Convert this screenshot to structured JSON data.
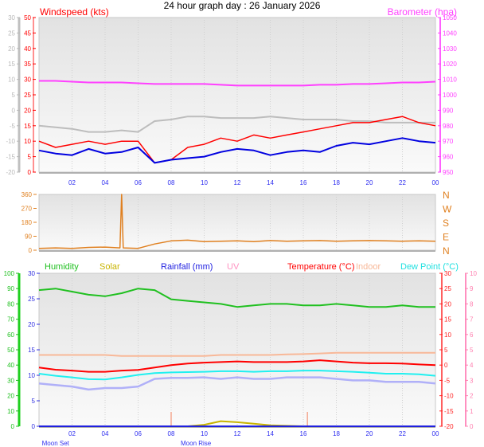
{
  "title": "24 hour graph day : 26 January 2026",
  "colors": {
    "wind_gust": "#ff0000",
    "wind_avg": "#0000e0",
    "baro": "#ff40ff",
    "grey": "#bdbdbd",
    "dir": "#e08020",
    "humidity": "#20c020",
    "solar": "#c8b400",
    "rain": "#2020e0",
    "uv": "#ff90c0",
    "temp": "#ff0000",
    "indoor": "#f8b898",
    "dew": "#20f0f0",
    "lilac": "#b0b0f8",
    "markers": "#f4a890"
  },
  "time_ticks": [
    "02",
    "04",
    "06",
    "08",
    "10",
    "12",
    "14",
    "16",
    "18",
    "20",
    "22",
    "00"
  ],
  "chart_data": [
    {
      "type": "line",
      "labels": {
        "wind": "Windspeed (kts)",
        "baro": "Barometer (hpa)"
      },
      "x": [
        0,
        1,
        2,
        3,
        4,
        5,
        6,
        7,
        8,
        9,
        10,
        11,
        12,
        13,
        14,
        15,
        16,
        17,
        18,
        19,
        20,
        21,
        22,
        23,
        24
      ],
      "axes": {
        "left_grey": {
          "range": [
            -20,
            30
          ],
          "ticks": [
            "30",
            "25",
            "20",
            "15",
            "10",
            "5",
            "0",
            "-5",
            "-10",
            "-15",
            "-20"
          ]
        },
        "left_wind": {
          "range": [
            0,
            50
          ],
          "ticks": [
            "50",
            "45",
            "40",
            "35",
            "30",
            "25",
            "20",
            "15",
            "10",
            "5",
            "0"
          ]
        },
        "right_baro": {
          "range": [
            950,
            1050
          ],
          "ticks": [
            "1050",
            "1040",
            "1030",
            "1020",
            "1010",
            "1000",
            "990",
            "980",
            "970",
            "960",
            "950"
          ]
        }
      },
      "series": [
        {
          "key": "baro",
          "axis": "right_baro",
          "values": [
            1009,
            1009,
            1008.5,
            1008,
            1008,
            1008,
            1007.5,
            1007,
            1007,
            1007,
            1007,
            1006.5,
            1006,
            1006,
            1006,
            1006,
            1006,
            1006.5,
            1006.5,
            1007,
            1007,
            1007.5,
            1008,
            1008,
            1008.5
          ]
        },
        {
          "key": "grey",
          "axis": "left_grey",
          "values": [
            -5,
            -5.5,
            -6,
            -7,
            -7,
            -6.5,
            -7,
            -3.5,
            -3,
            -2,
            -2,
            -2.5,
            -2.5,
            -2.5,
            -2,
            -2.5,
            -3,
            -3,
            -3,
            -3.5,
            -3.5,
            -4,
            -4,
            -4,
            -4
          ]
        },
        {
          "key": "wind_gust",
          "axis": "left_wind",
          "values": [
            10,
            8,
            9,
            10,
            9,
            10,
            10,
            3,
            4,
            8,
            9,
            11,
            10,
            12,
            11,
            12,
            13,
            14,
            15,
            16,
            16,
            17,
            18,
            16,
            15
          ]
        },
        {
          "key": "wind_avg",
          "axis": "left_wind",
          "values": [
            7,
            6,
            5.5,
            7.5,
            6,
            6.5,
            8,
            3,
            4,
            4.5,
            5,
            6.5,
            7.5,
            7,
            5.5,
            6.5,
            7,
            6.5,
            8.5,
            9.5,
            9,
            10,
            11,
            10,
            9.5
          ]
        }
      ]
    },
    {
      "type": "line",
      "x": [
        0,
        1,
        2,
        3,
        4,
        4.9,
        5,
        5.1,
        6,
        7,
        8,
        9,
        10,
        11,
        12,
        13,
        14,
        15,
        16,
        17,
        18,
        19,
        20,
        21,
        22,
        23,
        24
      ],
      "axis": {
        "range": [
          0,
          360
        ],
        "ticks": [
          "360",
          "270",
          "180",
          "90",
          "0"
        ],
        "compass": [
          "N",
          "W",
          "S",
          "E",
          "N"
        ]
      },
      "series": [
        {
          "key": "dir",
          "values": [
            12,
            15,
            12,
            18,
            20,
            15,
            360,
            15,
            12,
            40,
            60,
            65,
            55,
            58,
            60,
            55,
            62,
            58,
            60,
            62,
            58,
            60,
            62,
            60,
            58,
            60,
            58
          ]
        }
      ]
    },
    {
      "type": "line",
      "labels": {
        "humidity": "Humidity",
        "solar": "Solar",
        "rain": "Rainfall (mm)",
        "uv": "UV",
        "temp": "Temperature (°C)",
        "indoor": "Indoor",
        "dew": "Dew Point (°C)"
      },
      "x": [
        0,
        1,
        2,
        3,
        4,
        5,
        6,
        7,
        8,
        9,
        10,
        11,
        12,
        13,
        14,
        15,
        16,
        17,
        18,
        19,
        20,
        21,
        22,
        23,
        24
      ],
      "axes": {
        "humidity": {
          "range": [
            0,
            100
          ],
          "ticks": [
            "100",
            "90",
            "80",
            "70",
            "60",
            "50",
            "40",
            "30",
            "20",
            "10",
            "0"
          ]
        },
        "rain": {
          "range": [
            0,
            30
          ],
          "ticks": [
            "30",
            "25",
            "20",
            "15",
            "10",
            "5",
            "0"
          ]
        },
        "temp": {
          "range": [
            -20,
            30
          ],
          "ticks": [
            "30",
            "25",
            "20",
            "15",
            "10",
            "5",
            "0",
            "-5",
            "-10",
            "-15",
            "-20"
          ]
        },
        "uv": {
          "range": [
            0,
            10
          ],
          "ticks": [
            "10",
            "9",
            "8",
            "7",
            "6",
            "5",
            "4",
            "3",
            "2",
            "1",
            "0"
          ]
        }
      },
      "moon": {
        "set_label": "Moon Set",
        "rise_label": "Moon Rise",
        "set_time": 1,
        "rise_time": 9.5
      },
      "markers_time": [
        8,
        16.25
      ],
      "series": [
        {
          "key": "humidity",
          "axis": "humidity",
          "values": [
            89,
            90,
            88,
            86,
            85,
            87,
            90,
            89,
            83,
            82,
            81,
            80,
            78,
            79,
            80,
            80,
            79,
            79,
            80,
            79,
            78,
            78,
            79,
            78,
            78
          ]
        },
        {
          "key": "indoor",
          "axis": "temp",
          "values": [
            3.3,
            3.3,
            3.3,
            3.3,
            3.3,
            3,
            3,
            3,
            3,
            3,
            3,
            3.3,
            3.3,
            3.3,
            3.3,
            3.5,
            3.6,
            3.8,
            4,
            4,
            4,
            4,
            4,
            4,
            4
          ]
        },
        {
          "key": "temp",
          "axis": "temp",
          "values": [
            -0.8,
            -1.5,
            -1.8,
            -2.2,
            -2.2,
            -1.8,
            -1.6,
            -0.8,
            0,
            0.5,
            0.8,
            1,
            1.2,
            1,
            1,
            1,
            1.2,
            1.6,
            1.2,
            0.8,
            0.6,
            0.6,
            0.5,
            0.2,
            0
          ]
        },
        {
          "key": "dew",
          "axis": "temp",
          "values": [
            -2.8,
            -3.5,
            -4,
            -4.6,
            -4.7,
            -4,
            -3.2,
            -2.6,
            -2.4,
            -2.3,
            -2.2,
            -2,
            -2,
            -2.2,
            -2,
            -2,
            -1.8,
            -1.8,
            -2,
            -2.2,
            -2.5,
            -2.8,
            -2.8,
            -3,
            -3.5
          ]
        },
        {
          "key": "lilac",
          "axis": "temp",
          "values": [
            -6,
            -6.5,
            -7,
            -8,
            -7.5,
            -7.5,
            -7,
            -4.5,
            -4.2,
            -4.2,
            -4,
            -4.5,
            -4,
            -4.5,
            -4.5,
            -4,
            -4,
            -4,
            -4.5,
            -5,
            -5,
            -5.5,
            -5.5,
            -5.5,
            -6
          ]
        },
        {
          "key": "solar",
          "axis": "rain",
          "values": [
            0,
            0,
            0,
            0,
            0,
            0,
            0,
            0,
            0,
            0,
            0.3,
            1,
            0.8,
            0.5,
            0.2,
            0.1,
            0,
            0,
            0,
            0,
            0,
            0,
            0,
            0,
            0
          ]
        },
        {
          "key": "rain",
          "axis": "rain",
          "values": [
            0,
            0,
            0,
            0,
            0,
            0,
            0,
            0,
            0,
            0,
            0,
            0,
            0,
            0,
            0,
            0,
            0,
            0,
            0,
            0,
            0,
            0,
            0,
            0,
            0
          ]
        }
      ]
    }
  ]
}
